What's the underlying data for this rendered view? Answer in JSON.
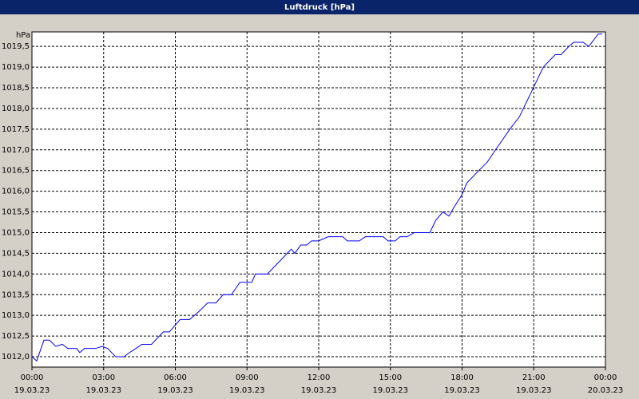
{
  "chart_data": {
    "type": "line",
    "title": "Luftdruck [hPa]",
    "y_label": "hPa",
    "x": [
      0,
      0.2,
      0.5,
      0.73,
      1.0,
      1.27,
      1.5,
      1.87,
      2.0,
      2.2,
      2.67,
      2.93,
      3.17,
      3.5,
      3.85,
      4.08,
      4.35,
      4.6,
      5.0,
      5.5,
      5.75,
      6.2,
      6.6,
      7.0,
      7.35,
      7.7,
      8.0,
      8.35,
      8.7,
      9.2,
      9.35,
      9.85,
      10.85,
      11.0,
      11.25,
      11.5,
      11.7,
      12.0,
      12.4,
      13.0,
      13.2,
      13.7,
      13.95,
      14.7,
      14.9,
      15.2,
      15.4,
      15.7,
      16.0,
      16.65,
      16.9,
      17.2,
      17.45,
      17.65,
      17.98,
      18.2,
      18.7,
      19.05,
      19.4,
      20.0,
      20.4,
      20.9,
      21.4,
      21.9,
      22.14,
      22.47,
      22.67,
      23.07,
      23.3,
      23.7,
      23.87
    ],
    "series": [
      {
        "name": "Luftdruck",
        "color": "#0000ff",
        "values": [
          1012.0,
          1011.9,
          1012.4,
          1012.4,
          1012.25,
          1012.3,
          1012.2,
          1012.2,
          1012.1,
          1012.2,
          1012.2,
          1012.25,
          1012.2,
          1012.0,
          1012.0,
          1012.1,
          1012.2,
          1012.3,
          1012.3,
          1012.6,
          1012.6,
          1012.9,
          1012.9,
          1013.1,
          1013.3,
          1013.3,
          1013.5,
          1013.5,
          1013.8,
          1013.8,
          1014.0,
          1014.0,
          1014.6,
          1014.5,
          1014.7,
          1014.7,
          1014.8,
          1014.8,
          1014.9,
          1014.9,
          1014.8,
          1014.8,
          1014.9,
          1014.9,
          1014.8,
          1014.8,
          1014.9,
          1014.9,
          1015.0,
          1015.0,
          1015.3,
          1015.5,
          1015.4,
          1015.6,
          1015.9,
          1016.2,
          1016.5,
          1016.7,
          1017.0,
          1017.5,
          1017.8,
          1018.4,
          1019.0,
          1019.3,
          1019.3,
          1019.5,
          1019.6,
          1019.6,
          1019.5,
          1019.8,
          1019.8
        ]
      }
    ],
    "xlim": [
      0,
      24
    ],
    "xticks": [
      {
        "value": 0,
        "label": "00:00",
        "date": "19.03.23"
      },
      {
        "value": 3,
        "label": "03:00",
        "date": "19.03.23"
      },
      {
        "value": 6,
        "label": "06:00",
        "date": "19.03.23"
      },
      {
        "value": 9,
        "label": "09:00",
        "date": "19.03.23"
      },
      {
        "value": 12,
        "label": "12:00",
        "date": "19.03.23"
      },
      {
        "value": 15,
        "label": "15:00",
        "date": "19.03.23"
      },
      {
        "value": 18,
        "label": "18:00",
        "date": "19.03.23"
      },
      {
        "value": 21,
        "label": "21:00",
        "date": "19.03.23"
      },
      {
        "value": 24,
        "label": "00:00",
        "date": "20.03.23"
      }
    ],
    "ylim": [
      1011.75,
      1019.85
    ],
    "yticks": [
      {
        "value": 1012,
        "label": "1012,0"
      },
      {
        "value": 1012.5,
        "label": "1012,5"
      },
      {
        "value": 1013,
        "label": "1013,0"
      },
      {
        "value": 1013.5,
        "label": "1013,5"
      },
      {
        "value": 1014,
        "label": "1014,0"
      },
      {
        "value": 1014.5,
        "label": "1014,5"
      },
      {
        "value": 1015,
        "label": "1015,0"
      },
      {
        "value": 1015.5,
        "label": "1015,5"
      },
      {
        "value": 1016,
        "label": "1016,0"
      },
      {
        "value": 1016.5,
        "label": "1016,5"
      },
      {
        "value": 1017,
        "label": "1017,0"
      },
      {
        "value": 1017.5,
        "label": "1017,5"
      },
      {
        "value": 1018,
        "label": "1018,0"
      },
      {
        "value": 1018.5,
        "label": "1018,5"
      },
      {
        "value": 1019,
        "label": "1019,0"
      },
      {
        "value": 1019.5,
        "label": "1019,5"
      }
    ],
    "grid": true
  }
}
